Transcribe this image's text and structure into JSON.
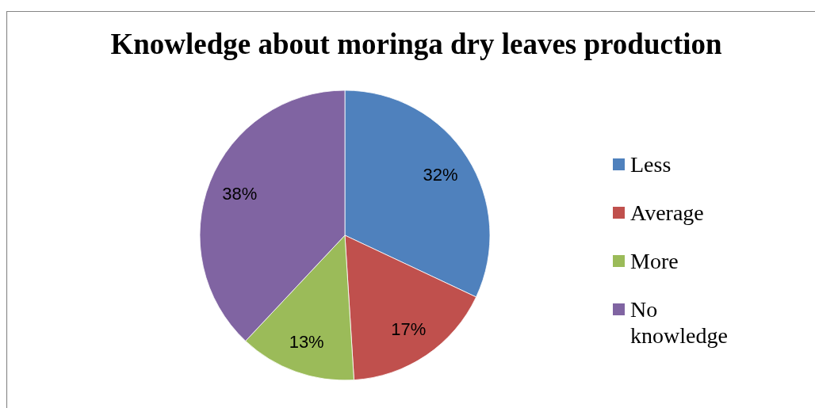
{
  "chart_data": {
    "type": "pie",
    "title": "Knowledge about moringa dry leaves production",
    "categories": [
      "Less",
      "Average",
      "More",
      "No knowledge"
    ],
    "values": [
      32,
      17,
      13,
      38
    ],
    "colors": [
      "#4f81bd",
      "#c0504d",
      "#9bbb59",
      "#8064a2"
    ],
    "value_labels": [
      "32%",
      "17%",
      "13%",
      "38%"
    ],
    "legend": "right"
  }
}
